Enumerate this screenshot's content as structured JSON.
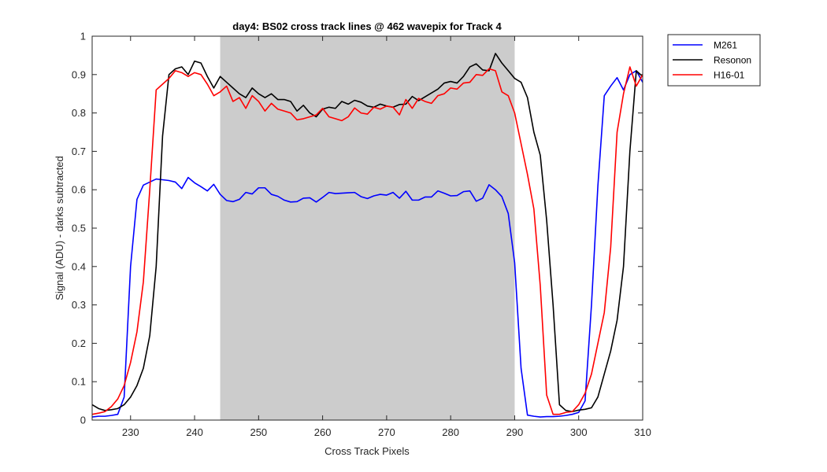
{
  "chart_data": {
    "type": "line",
    "title": "day4: BS02  cross track lines @ 462 wavepix for Track 4",
    "xlabel": "Cross Track Pixels",
    "ylabel": "Signal (ADU) - darks subtracted",
    "xlim": [
      224,
      310
    ],
    "ylim": [
      0,
      1
    ],
    "xticks": [
      230,
      240,
      250,
      260,
      270,
      280,
      290,
      300,
      310
    ],
    "yticks": [
      0,
      0.1,
      0.2,
      0.3,
      0.4,
      0.5,
      0.6,
      0.7,
      0.8,
      0.9,
      1
    ],
    "grid": false,
    "legend_position": "outside-top-right",
    "highlight_region": {
      "x": [
        244,
        290
      ],
      "color": "#cccccc"
    },
    "series": [
      {
        "name": "M261",
        "color": "#0000ff",
        "x": [
          224,
          225,
          226,
          227,
          228,
          229,
          230,
          231,
          232,
          233,
          234,
          235,
          236,
          237,
          238,
          239,
          240,
          241,
          242,
          243,
          244,
          245,
          246,
          247,
          248,
          249,
          250,
          251,
          252,
          253,
          254,
          255,
          256,
          257,
          258,
          259,
          260,
          261,
          262,
          263,
          264,
          265,
          266,
          267,
          268,
          269,
          270,
          271,
          272,
          273,
          274,
          275,
          276,
          277,
          278,
          279,
          280,
          281,
          282,
          283,
          284,
          285,
          286,
          287,
          288,
          289,
          290,
          291,
          292,
          293,
          294,
          295,
          296,
          297,
          298,
          299,
          300,
          301,
          302,
          303,
          304,
          305,
          306,
          307,
          308,
          309,
          310
        ],
        "y": [
          0.008,
          0.01,
          0.01,
          0.012,
          0.015,
          0.06,
          0.4,
          0.575,
          0.612,
          0.62,
          0.628,
          0.626,
          0.624,
          0.62,
          0.603,
          0.632,
          0.618,
          0.608,
          0.597,
          0.614,
          0.588,
          0.572,
          0.569,
          0.575,
          0.593,
          0.589,
          0.605,
          0.605,
          0.588,
          0.583,
          0.573,
          0.568,
          0.569,
          0.578,
          0.579,
          0.568,
          0.58,
          0.593,
          0.59,
          0.591,
          0.592,
          0.593,
          0.582,
          0.577,
          0.584,
          0.588,
          0.586,
          0.593,
          0.578,
          0.596,
          0.573,
          0.573,
          0.581,
          0.581,
          0.597,
          0.591,
          0.584,
          0.585,
          0.595,
          0.597,
          0.57,
          0.578,
          0.613,
          0.6,
          0.582,
          0.538,
          0.41,
          0.135,
          0.013,
          0.01,
          0.008,
          0.009,
          0.009,
          0.01,
          0.012,
          0.015,
          0.02,
          0.05,
          0.3,
          0.61,
          0.845,
          0.87,
          0.892,
          0.86,
          0.9,
          0.91,
          0.88
        ]
      },
      {
        "name": "Resonon",
        "color": "#000000",
        "x": [
          224,
          225,
          226,
          227,
          228,
          229,
          230,
          231,
          232,
          233,
          234,
          235,
          236,
          237,
          238,
          239,
          240,
          241,
          242,
          243,
          244,
          245,
          246,
          247,
          248,
          249,
          250,
          251,
          252,
          253,
          254,
          255,
          256,
          257,
          258,
          259,
          260,
          261,
          262,
          263,
          264,
          265,
          266,
          267,
          268,
          269,
          270,
          271,
          272,
          273,
          274,
          275,
          276,
          277,
          278,
          279,
          280,
          281,
          282,
          283,
          284,
          285,
          286,
          287,
          288,
          289,
          290,
          291,
          292,
          293,
          294,
          295,
          296,
          297,
          298,
          299,
          300,
          301,
          302,
          303,
          304,
          305,
          306,
          307,
          308,
          309,
          310
        ],
        "y": [
          0.04,
          0.03,
          0.025,
          0.027,
          0.03,
          0.04,
          0.06,
          0.09,
          0.135,
          0.22,
          0.4,
          0.74,
          0.9,
          0.915,
          0.92,
          0.9,
          0.935,
          0.93,
          0.895,
          0.865,
          0.895,
          0.88,
          0.865,
          0.85,
          0.84,
          0.865,
          0.85,
          0.84,
          0.85,
          0.835,
          0.835,
          0.83,
          0.805,
          0.82,
          0.8,
          0.79,
          0.81,
          0.815,
          0.812,
          0.83,
          0.823,
          0.833,
          0.828,
          0.818,
          0.815,
          0.823,
          0.818,
          0.815,
          0.822,
          0.823,
          0.843,
          0.832,
          0.842,
          0.852,
          0.862,
          0.878,
          0.882,
          0.878,
          0.895,
          0.92,
          0.928,
          0.912,
          0.91,
          0.955,
          0.93,
          0.91,
          0.89,
          0.88,
          0.84,
          0.75,
          0.69,
          0.52,
          0.3,
          0.04,
          0.025,
          0.022,
          0.026,
          0.028,
          0.032,
          0.06,
          0.12,
          0.18,
          0.26,
          0.4,
          0.7,
          0.91,
          0.895
        ]
      },
      {
        "name": "H16-01",
        "color": "#ff0000",
        "x": [
          224,
          225,
          226,
          227,
          228,
          229,
          230,
          231,
          232,
          233,
          234,
          235,
          236,
          237,
          238,
          239,
          240,
          241,
          242,
          243,
          244,
          245,
          246,
          247,
          248,
          249,
          250,
          251,
          252,
          253,
          254,
          255,
          256,
          257,
          258,
          259,
          260,
          261,
          262,
          263,
          264,
          265,
          266,
          267,
          268,
          269,
          270,
          271,
          272,
          273,
          274,
          275,
          276,
          277,
          278,
          279,
          280,
          281,
          282,
          283,
          284,
          285,
          286,
          287,
          288,
          289,
          290,
          291,
          292,
          293,
          294,
          295,
          296,
          297,
          298,
          299,
          300,
          301,
          302,
          303,
          304,
          305,
          306,
          307,
          308,
          309,
          310
        ],
        "y": [
          0.015,
          0.018,
          0.022,
          0.035,
          0.055,
          0.09,
          0.15,
          0.23,
          0.36,
          0.6,
          0.86,
          0.875,
          0.89,
          0.91,
          0.905,
          0.895,
          0.905,
          0.9,
          0.875,
          0.845,
          0.855,
          0.87,
          0.83,
          0.84,
          0.812,
          0.845,
          0.83,
          0.805,
          0.825,
          0.81,
          0.805,
          0.8,
          0.782,
          0.785,
          0.79,
          0.795,
          0.812,
          0.79,
          0.785,
          0.78,
          0.79,
          0.813,
          0.8,
          0.797,
          0.815,
          0.81,
          0.818,
          0.815,
          0.795,
          0.835,
          0.812,
          0.838,
          0.83,
          0.825,
          0.845,
          0.85,
          0.865,
          0.862,
          0.878,
          0.88,
          0.9,
          0.898,
          0.915,
          0.91,
          0.855,
          0.845,
          0.8,
          0.72,
          0.64,
          0.55,
          0.35,
          0.065,
          0.015,
          0.015,
          0.02,
          0.022,
          0.04,
          0.07,
          0.12,
          0.2,
          0.28,
          0.45,
          0.75,
          0.85,
          0.92,
          0.87,
          0.9
        ]
      }
    ]
  }
}
